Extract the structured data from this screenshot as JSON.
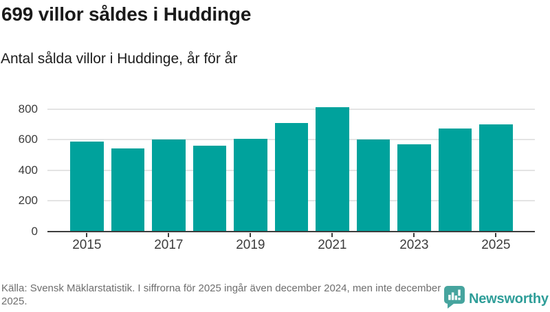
{
  "header": {
    "title": "699 villor såldes i Huddinge",
    "subtitle": "Antal sålda villor i Huddinge, år för år"
  },
  "chart_data": {
    "type": "bar",
    "categories": [
      "2015",
      "2016",
      "2017",
      "2018",
      "2019",
      "2020",
      "2021",
      "2022",
      "2023",
      "2024",
      "2025"
    ],
    "values": [
      588,
      545,
      601,
      561,
      605,
      710,
      813,
      604,
      570,
      676,
      699
    ],
    "title": "699 villor såldes i Huddinge",
    "subtitle": "Antal sålda villor i Huddinge, år för år",
    "xlabel": "",
    "ylabel": "",
    "y_ticks": [
      0,
      200,
      400,
      600,
      800
    ],
    "x_visible_tick_labels": [
      "2015",
      "2017",
      "2019",
      "2021",
      "2023",
      "2025"
    ],
    "ylim": [
      0,
      840
    ],
    "grid": true,
    "legend": false,
    "bar_color": "#00a29c"
  },
  "footer": {
    "source": "Källa: Svensk Mäklarstatistik. I siffrorna för 2025 ingår även december 2024, men inte december 2025.",
    "logo_text": "Newsworthy"
  },
  "colors": {
    "bar": "#00a29c",
    "axis": "#3d3d3d",
    "gridline": "#e4e4e4",
    "logo_teal": "#2f9e99",
    "logo_icon": "#46a49e",
    "footer_gray": "#6e6e6e"
  },
  "icons": {
    "logo_icon": "newsworthy-speech-bubble-bar-chart-icon"
  }
}
